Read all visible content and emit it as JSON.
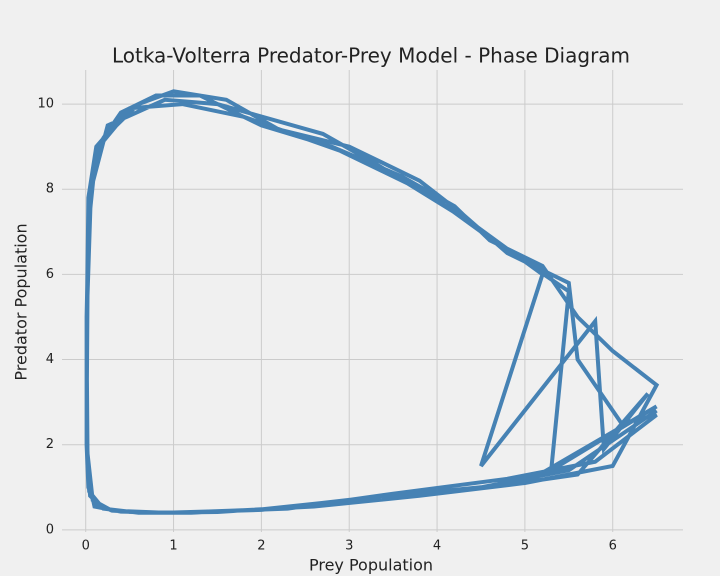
{
  "chart_data": {
    "type": "line",
    "title": "Lotka-Volterra Predator-Prey Model - Phase Diagram",
    "x_label": "Prey Population",
    "y_label": "Predator Population",
    "x": [
      6.5,
      5.5,
      4.5,
      3.5,
      2.5,
      1.5,
      0.8,
      0.3,
      0.1,
      0.03,
      0.01,
      0.01,
      0.02,
      0.05,
      0.1,
      0.2,
      0.4,
      0.8,
      1.3,
      2.0,
      2.8,
      3.6,
      4.2,
      4.6,
      5.2,
      5.6,
      6.0,
      6.5,
      6.0,
      5.0,
      4.0,
      3.0,
      2.0,
      1.2,
      0.5,
      0.2,
      0.05,
      0.02,
      0.01,
      0.01,
      0.03,
      0.08,
      0.15,
      0.35,
      0.6,
      1.0,
      1.6,
      2.2,
      3.0,
      3.8,
      4.3,
      4.8,
      5.5,
      5.6,
      6.1,
      6.5,
      5.8,
      4.8,
      3.5,
      2.3,
      1.0,
      0.4,
      0.1,
      0.03,
      0.01,
      0.02,
      0.06,
      0.25,
      0.9,
      1.5,
      2.7,
      3.3,
      4.4,
      5.2,
      4.5,
      5.8,
      5.9,
      6.4,
      5.6,
      4.6,
      3.2,
      2.0,
      0.9,
      0.3,
      0.08,
      0.02,
      0.01,
      0.03,
      0.12,
      0.5,
      1.1,
      1.8,
      2.9,
      3.9,
      4.5,
      5.5,
      5.3,
      6.5,
      5.0,
      3.8,
      2.6,
      1.4,
      0.6,
      0.2,
      0.04,
      0.01
    ],
    "series": [
      {
        "name": "Predator Population",
        "color": "#4682b4",
        "values": [
          2.8,
          1.4,
          1.0,
          0.8,
          0.55,
          0.42,
          0.4,
          0.45,
          0.6,
          1.0,
          2.0,
          4.0,
          6.0,
          7.5,
          8.5,
          9.2,
          9.8,
          10.2,
          10.2,
          9.5,
          9.0,
          8.3,
          7.6,
          6.8,
          6.2,
          5.0,
          4.2,
          3.4,
          1.5,
          1.1,
          0.9,
          0.7,
          0.48,
          0.4,
          0.42,
          0.5,
          0.8,
          1.5,
          3.0,
          5.0,
          7.0,
          8.2,
          9.0,
          9.5,
          10.0,
          10.3,
          10.1,
          9.4,
          9.0,
          8.2,
          7.4,
          6.5,
          5.8,
          4.0,
          2.5,
          2.7,
          1.6,
          1.2,
          0.85,
          0.5,
          0.4,
          0.43,
          0.55,
          1.2,
          2.5,
          5.5,
          8.0,
          9.5,
          10.1,
          10.0,
          9.3,
          8.6,
          7.2,
          6.0,
          1.5,
          4.9,
          1.9,
          3.2,
          1.3,
          1.0,
          0.75,
          0.47,
          0.4,
          0.45,
          0.7,
          1.8,
          4.5,
          7.8,
          9.0,
          9.9,
          10.0,
          9.7,
          8.9,
          7.9,
          7.0,
          5.6,
          1.4,
          2.9,
          1.1,
          0.8,
          0.55,
          0.42,
          0.4,
          0.5,
          0.9,
          2.0
        ]
      }
    ],
    "xlim": [
      -0.27,
      6.8
    ],
    "ylim": [
      -0.05,
      10.8
    ],
    "xticks": [
      0,
      1,
      2,
      3,
      4,
      5,
      6
    ],
    "yticks": [
      0,
      2,
      4,
      6,
      8,
      10
    ],
    "grid": true
  }
}
